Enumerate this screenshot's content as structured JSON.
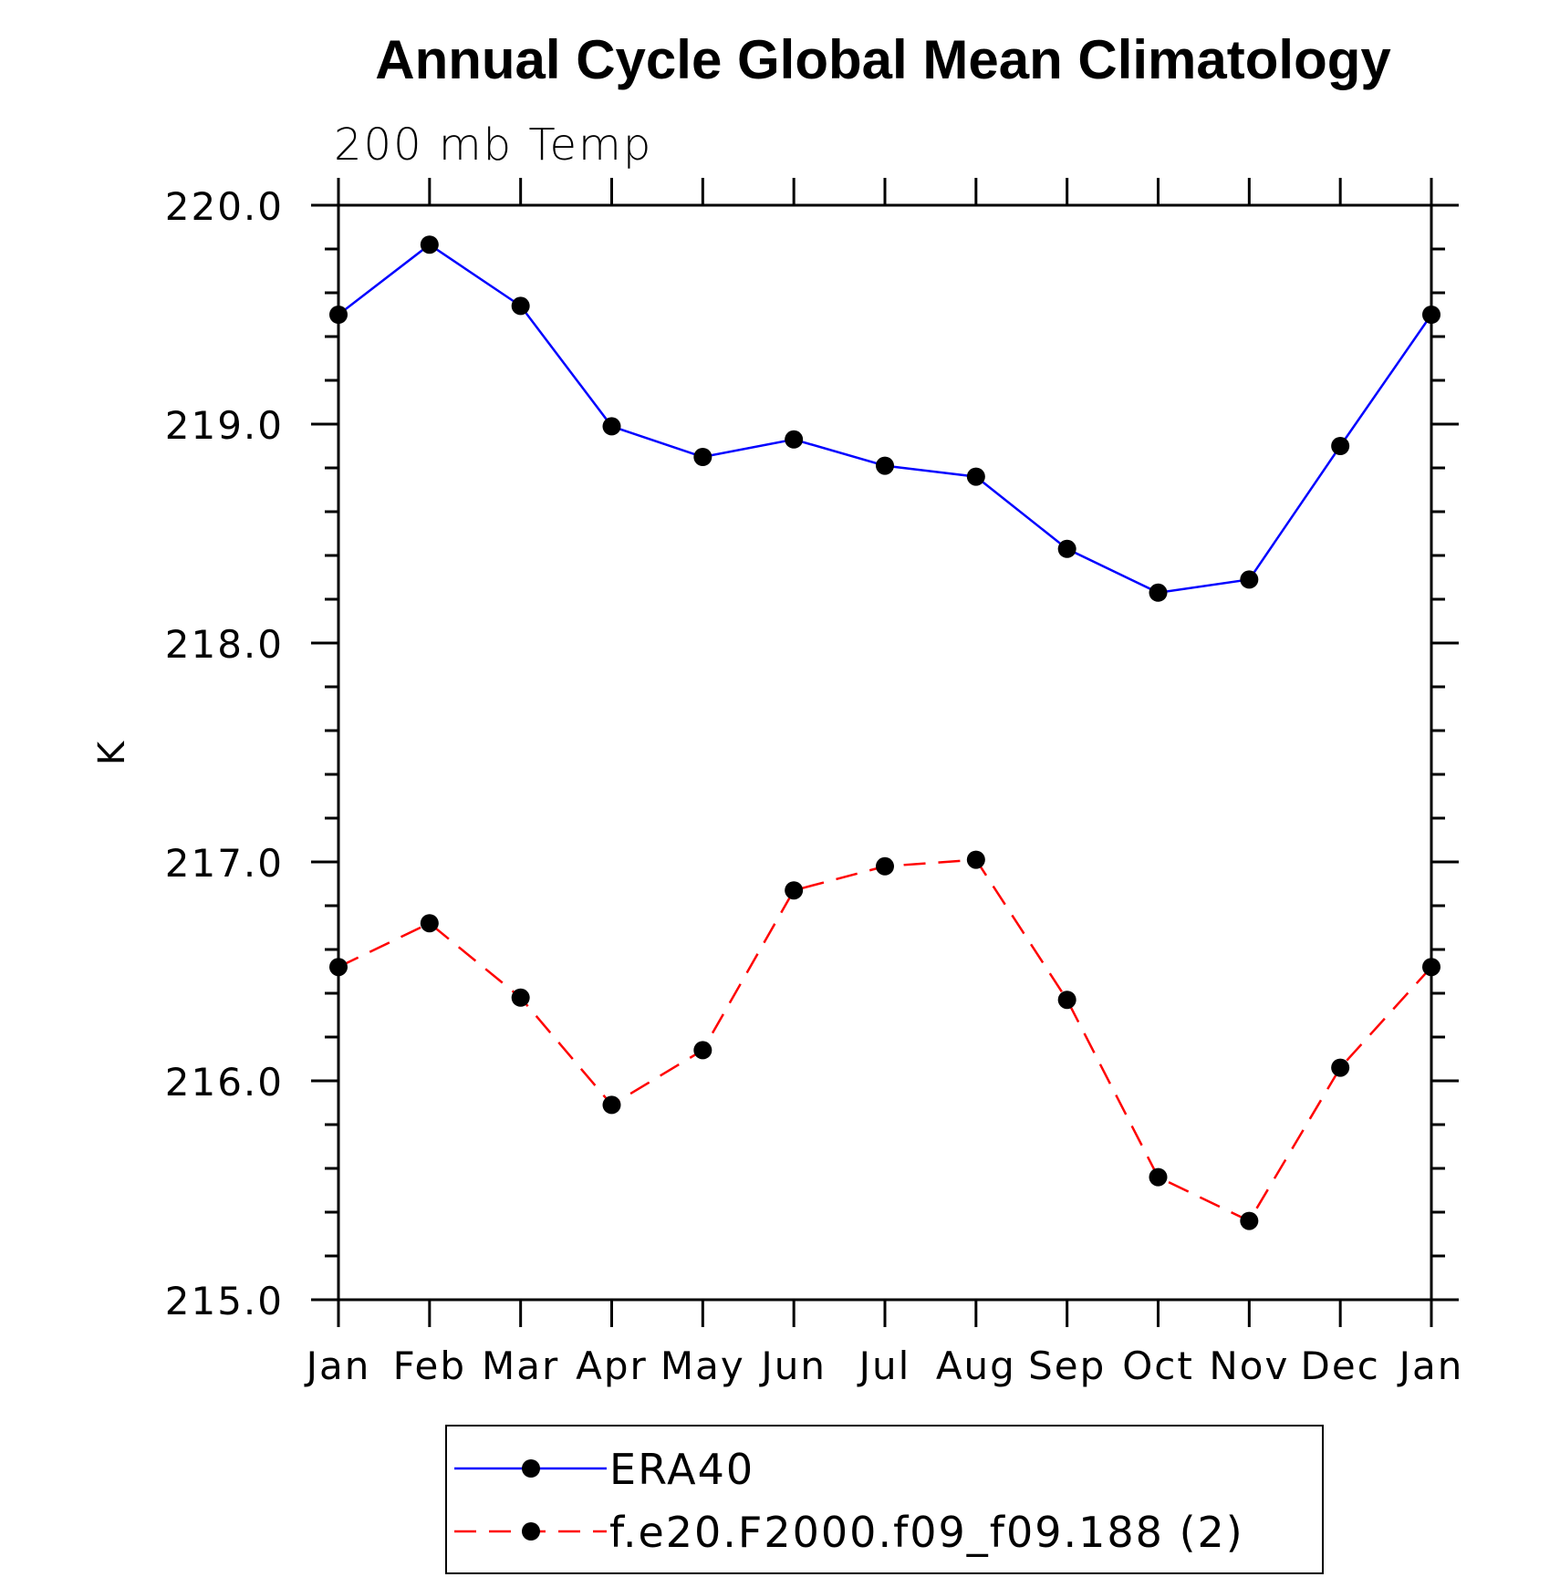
{
  "chart_data": {
    "type": "line",
    "title": "Annual Cycle Global Mean Climatology",
    "subtitle": "200 mb Temp",
    "xlabel": "",
    "ylabel": "K",
    "categories": [
      "Jan",
      "Feb",
      "Mar",
      "Apr",
      "May",
      "Jun",
      "Jul",
      "Aug",
      "Sep",
      "Oct",
      "Nov",
      "Dec",
      "Jan"
    ],
    "ylim": [
      215.0,
      220.0
    ],
    "yticks": [
      215.0,
      216.0,
      217.0,
      218.0,
      219.0,
      220.0
    ],
    "ytick_labels": [
      "215.0",
      "216.0",
      "217.0",
      "218.0",
      "219.0",
      "220.0"
    ],
    "series": [
      {
        "name": "ERA40",
        "color": "#0000ff",
        "line_style": "solid",
        "marker": "filled-circle",
        "values": [
          219.5,
          219.82,
          219.54,
          218.99,
          218.85,
          218.93,
          218.81,
          218.76,
          218.43,
          218.23,
          218.29,
          218.9,
          219.5
        ]
      },
      {
        "name": "f.e20.F2000.f09_f09.188 (2)",
        "color": "#ff0000",
        "line_style": "dashed",
        "marker": "filled-circle",
        "values": [
          216.52,
          216.72,
          216.38,
          215.89,
          216.14,
          216.87,
          216.98,
          217.01,
          216.37,
          215.56,
          215.36,
          216.06,
          216.52
        ]
      }
    ],
    "legend_position": "bottom",
    "marker_color": "#000000"
  }
}
